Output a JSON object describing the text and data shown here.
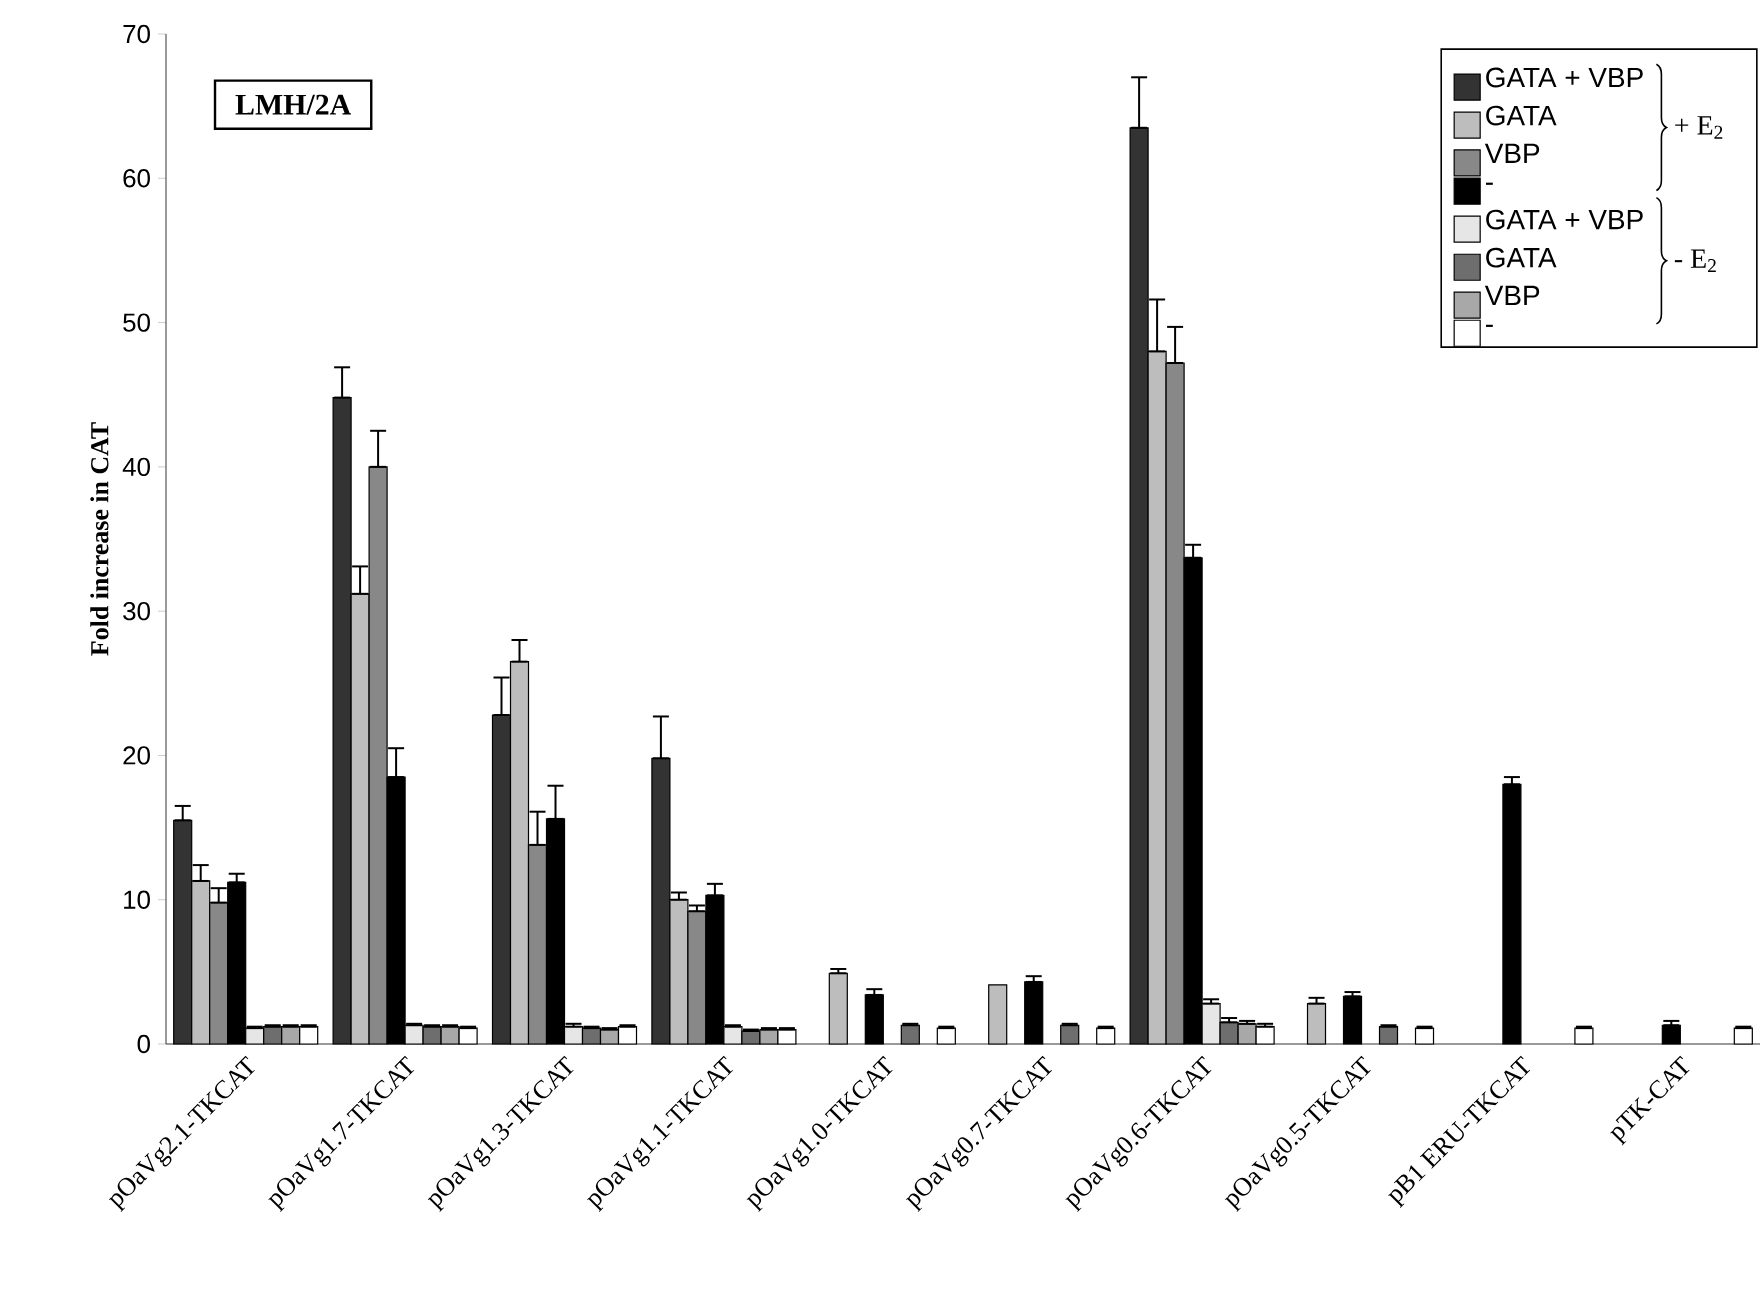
{
  "chart_data": {
    "type": "bar",
    "title": "LMH/2A",
    "ylabel": "Fold increase in CAT",
    "categories": [
      "pOaVg2.1-TKCAT",
      "pOaVg1.7-TKCAT",
      "pOaVg1.3-TKCAT",
      "pOaVg1.1-TKCAT",
      "pOaVg1.0-TKCAT",
      "pOaVg0.7-TKCAT",
      "pOaVg0.6-TKCAT",
      "pOaVg0.5-TKCAT",
      "pB1 ERU-TKCAT",
      "pTK-CAT"
    ],
    "series": [
      {
        "name": "GATA + VBP",
        "color": "#333333",
        "values": [
          15.5,
          44.8,
          22.8,
          19.8,
          null,
          null,
          63.5,
          null,
          null,
          null
        ],
        "errors": [
          [
            15.5,
            16.5
          ],
          [
            44.8,
            46.9
          ],
          [
            22.8,
            25.4
          ],
          [
            19.8,
            22.7
          ],
          null,
          null,
          [
            63.5,
            67.0
          ],
          null,
          null,
          null
        ]
      },
      {
        "name": "GATA",
        "color": "#bdbdbd",
        "values": [
          11.3,
          31.2,
          26.5,
          10.0,
          4.9,
          4.1,
          48.0,
          2.8,
          null,
          null
        ],
        "errors": [
          [
            11.3,
            12.4
          ],
          [
            31.2,
            33.1
          ],
          [
            26.5,
            28.0
          ],
          [
            10.0,
            10.5
          ],
          [
            4.9,
            5.2
          ],
          null,
          [
            48.0,
            51.6
          ],
          [
            2.8,
            3.2
          ],
          null,
          null
        ]
      },
      {
        "name": "VBP",
        "color": "#888888",
        "values": [
          9.8,
          40.0,
          13.8,
          9.2,
          null,
          null,
          47.2,
          null,
          null,
          null
        ],
        "errors": [
          [
            9.8,
            10.8
          ],
          [
            40.0,
            42.5
          ],
          [
            13.8,
            16.1
          ],
          [
            9.2,
            9.6
          ],
          null,
          null,
          [
            47.2,
            49.7
          ],
          null,
          null,
          null
        ]
      },
      {
        "name": "-",
        "color": "#000000",
        "values": [
          11.2,
          18.5,
          15.6,
          10.3,
          3.4,
          4.3,
          33.7,
          3.3,
          18.0,
          1.3
        ],
        "errors": [
          [
            11.2,
            11.8
          ],
          [
            18.5,
            20.5
          ],
          [
            15.6,
            17.9
          ],
          [
            10.3,
            11.1
          ],
          [
            3.4,
            3.8
          ],
          [
            4.3,
            4.7
          ],
          [
            33.7,
            34.6
          ],
          [
            3.3,
            3.6
          ],
          [
            18.0,
            18.5
          ],
          [
            1.3,
            1.6
          ]
        ]
      },
      {
        "name": "GATA + VBP",
        "color": "#e6e6e6",
        "values": [
          1.1,
          1.3,
          1.2,
          1.2,
          null,
          null,
          2.8,
          null,
          null,
          null
        ],
        "errors": [
          [
            1.1,
            1.2
          ],
          [
            1.3,
            1.4
          ],
          [
            1.2,
            1.4
          ],
          [
            1.2,
            1.3
          ],
          null,
          null,
          [
            2.8,
            3.1
          ],
          null,
          null,
          null
        ]
      },
      {
        "name": "GATA",
        "color": "#6e6e6e",
        "values": [
          1.2,
          1.2,
          1.1,
          0.9,
          1.3,
          1.3,
          1.5,
          1.2,
          null,
          null
        ],
        "errors": [
          [
            1.2,
            1.3
          ],
          [
            1.2,
            1.3
          ],
          [
            1.1,
            1.2
          ],
          [
            0.9,
            1.0
          ],
          [
            1.3,
            1.4
          ],
          [
            1.3,
            1.4
          ],
          [
            1.5,
            1.8
          ],
          [
            1.2,
            1.3
          ],
          null,
          null
        ]
      },
      {
        "name": "VBP",
        "color": "#a8a8a8",
        "values": [
          1.2,
          1.2,
          1.0,
          1.0,
          null,
          null,
          1.4,
          null,
          null,
          null
        ],
        "errors": [
          [
            1.2,
            1.3
          ],
          [
            1.2,
            1.3
          ],
          [
            1.0,
            1.1
          ],
          [
            1.0,
            1.1
          ],
          null,
          null,
          [
            1.4,
            1.6
          ],
          null,
          null,
          null
        ]
      },
      {
        "name": "-",
        "color": "#ffffff",
        "values": [
          1.2,
          1.1,
          1.2,
          1.0,
          1.1,
          1.1,
          1.2,
          1.1,
          1.1,
          1.1
        ],
        "errors": [
          [
            1.2,
            1.3
          ],
          [
            1.1,
            1.2
          ],
          [
            1.2,
            1.3
          ],
          [
            1.0,
            1.1
          ],
          [
            1.1,
            1.2
          ],
          [
            1.1,
            1.2
          ],
          [
            1.2,
            1.4
          ],
          [
            1.1,
            1.2
          ],
          [
            1.1,
            1.2
          ],
          [
            1.1,
            1.2
          ]
        ]
      }
    ],
    "ylim": [
      0,
      70
    ],
    "yticks": [
      0,
      10,
      20,
      30,
      40,
      50,
      60,
      70
    ],
    "legend": "top right",
    "annotations": [
      "+ E$_{2}$",
      "- E$_{2}$"
    ]
  }
}
